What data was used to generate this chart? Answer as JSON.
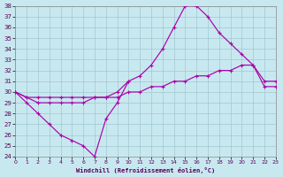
{
  "xlabel": "Windchill (Refroidissement éolien,°C)",
  "x_all": [
    0,
    1,
    2,
    3,
    4,
    5,
    6,
    7,
    8,
    9,
    10,
    11,
    12,
    13,
    14,
    15,
    16,
    17,
    18,
    19,
    20,
    21,
    22,
    23
  ],
  "line_dip": {
    "x": [
      0,
      1,
      2,
      3,
      4,
      5,
      6,
      7,
      8,
      9,
      10
    ],
    "y": [
      30,
      29,
      28,
      27,
      26,
      25.5,
      25,
      24,
      27.5,
      29,
      31
    ]
  },
  "line_peak": {
    "x": [
      0,
      1,
      2,
      3,
      4,
      5,
      6,
      7,
      8,
      9,
      10,
      11,
      12,
      13,
      14,
      15,
      16,
      17,
      18,
      19,
      20,
      21,
      22,
      23
    ],
    "y": [
      30,
      29.5,
      29,
      29,
      29,
      29,
      29,
      29.5,
      29.5,
      30,
      31,
      31.5,
      32.5,
      34,
      36,
      38,
      38,
      37,
      35.5,
      34.5,
      33.5,
      32.5,
      31,
      31
    ]
  },
  "line_flat": {
    "x": [
      0,
      1,
      2,
      3,
      4,
      5,
      6,
      7,
      8,
      9,
      10,
      11,
      12,
      13,
      14,
      15,
      16,
      17,
      18,
      19,
      20,
      21,
      22,
      23
    ],
    "y": [
      30,
      29.5,
      29.5,
      29.5,
      29.5,
      29.5,
      29.5,
      29.5,
      29.5,
      29.5,
      30,
      30,
      30.5,
      30.5,
      31,
      31,
      31.5,
      31.5,
      32,
      32,
      32.5,
      32.5,
      30.5,
      30.5
    ]
  },
  "bg_color": "#c8e8f0",
  "grid_color": "#a0c8d0",
  "line_color": "#aa00aa",
  "ylim": [
    24,
    38
  ],
  "xlim": [
    0,
    23
  ],
  "yticks": [
    24,
    25,
    26,
    27,
    28,
    29,
    30,
    31,
    32,
    33,
    34,
    35,
    36,
    37,
    38
  ],
  "xticks": [
    0,
    1,
    2,
    3,
    4,
    5,
    6,
    7,
    8,
    9,
    10,
    11,
    12,
    13,
    14,
    15,
    16,
    17,
    18,
    19,
    20,
    21,
    22,
    23
  ]
}
